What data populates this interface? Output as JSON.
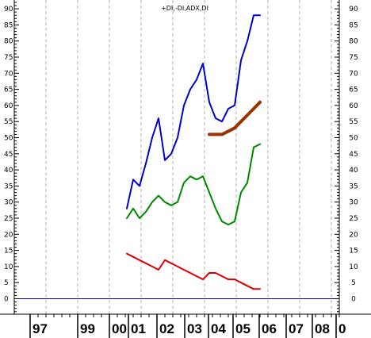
{
  "chart_data": {
    "type": "line",
    "title": "+DI,-DI,ADX,DI",
    "xlabel": "",
    "ylabel": "",
    "x_tick_labels": [
      "97",
      "99",
      "00",
      "01",
      "02",
      "03",
      "04",
      "05",
      "06",
      "07",
      "08",
      "0"
    ],
    "y_ticks": [
      0,
      5,
      10,
      15,
      20,
      25,
      30,
      35,
      40,
      45,
      50,
      55,
      60,
      65,
      70,
      75,
      80,
      85,
      90
    ],
    "ylim": [
      -4,
      94
    ],
    "xlim": [
      0,
      468
    ],
    "grid": {
      "vertical_dashed": true,
      "horizontal": false
    },
    "baseline": {
      "value": 0,
      "color": "#0000cc"
    },
    "series": [
      {
        "color": "#0000cc",
        "width": 2,
        "x": [
          160,
          168,
          176,
          184,
          192,
          200,
          208,
          216,
          224,
          232,
          240,
          248,
          256,
          264,
          272,
          280,
          288,
          296,
          304,
          312,
          320,
          328
        ],
        "values": [
          28,
          37,
          35,
          42,
          50,
          56,
          43,
          45,
          50,
          60,
          65,
          68,
          73,
          61,
          56,
          55,
          59,
          60,
          74,
          80,
          88,
          88
        ]
      },
      {
        "color": "#008800",
        "width": 2,
        "x": [
          160,
          168,
          176,
          184,
          192,
          200,
          208,
          216,
          224,
          232,
          240,
          248,
          256,
          264,
          272,
          280,
          288,
          296,
          304,
          312,
          320,
          328
        ],
        "values": [
          25,
          28,
          25,
          27,
          30,
          32,
          30,
          29,
          30,
          36,
          38,
          37,
          38,
          33,
          28,
          24,
          23,
          24,
          33,
          36,
          47,
          48
        ]
      },
      {
        "color": "#dd0000",
        "width": 2,
        "x": [
          160,
          168,
          176,
          184,
          192,
          200,
          208,
          216,
          224,
          232,
          240,
          248,
          256,
          264,
          272,
          280,
          288,
          296,
          304,
          312,
          320,
          328
        ],
        "values": [
          14,
          13,
          12,
          11,
          10,
          9,
          12,
          11,
          10,
          9,
          8,
          7,
          6,
          8,
          8,
          7,
          6,
          6,
          5,
          4,
          3,
          3
        ]
      },
      {
        "color": "#993300",
        "width": 4,
        "x": [
          264,
          272,
          280,
          288,
          296,
          304,
          312,
          320,
          328
        ],
        "values": [
          51,
          51,
          51,
          52,
          53,
          55,
          57,
          59,
          61
        ]
      }
    ]
  }
}
